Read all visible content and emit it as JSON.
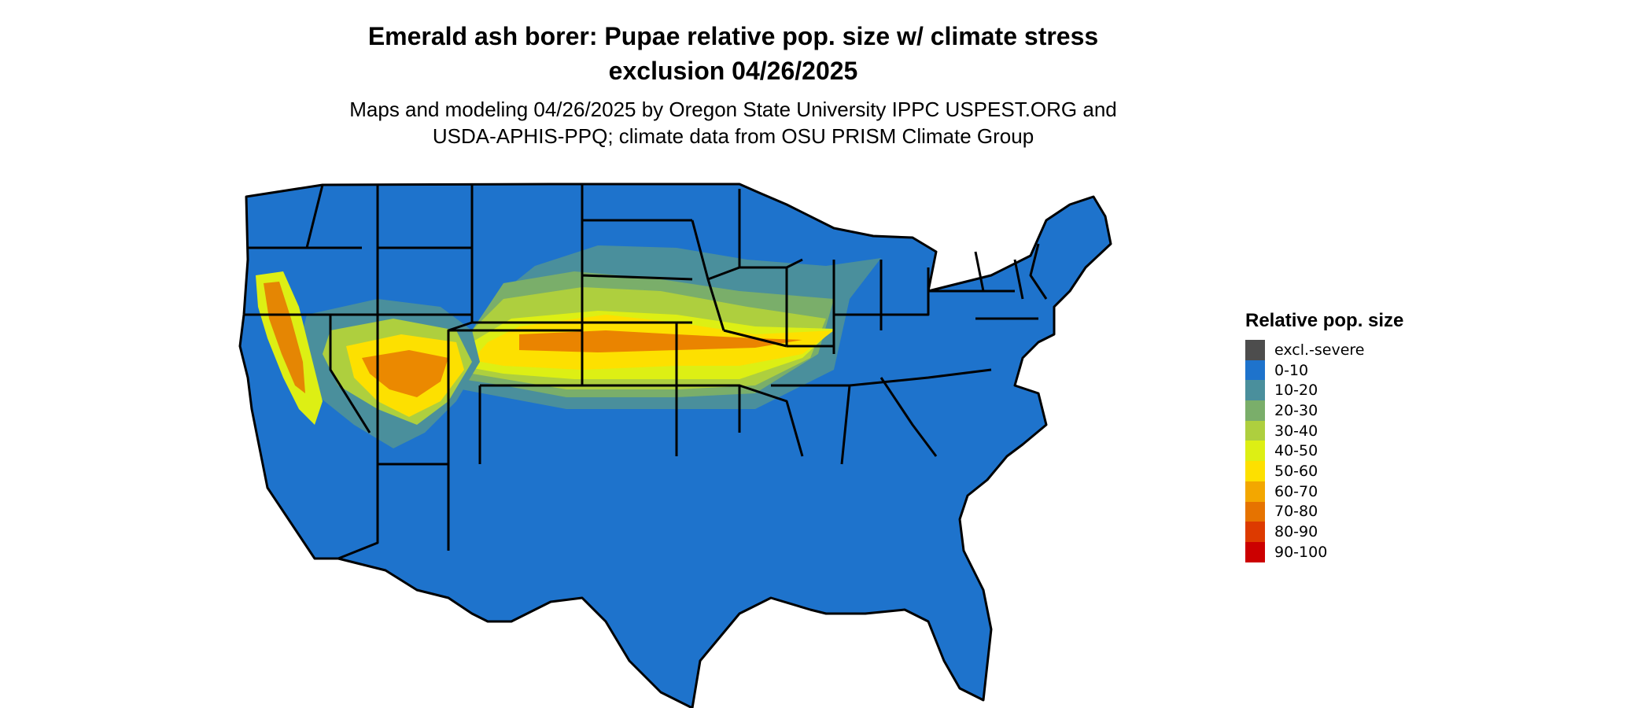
{
  "header": {
    "title_line1": "Emerald ash borer: Pupae relative pop. size w/ climate stress",
    "title_line2": "exclusion 04/26/2025",
    "subtitle_line1": "Maps and modeling 04/26/2025 by Oregon State University IPPC USPEST.ORG and",
    "subtitle_line2": "USDA-APHIS-PPQ; climate data from OSU PRISM Climate Group"
  },
  "legend": {
    "title": "Relative pop. size",
    "items": [
      {
        "label": "excl.-severe",
        "color": "#4d4d4d"
      },
      {
        "label": "0-10",
        "color": "#1e73cc"
      },
      {
        "label": "10-20",
        "color": "#4a8f9c"
      },
      {
        "label": "20-30",
        "color": "#7aae6a"
      },
      {
        "label": "30-40",
        "color": "#aecf3e"
      },
      {
        "label": "40-50",
        "color": "#ddef14"
      },
      {
        "label": "50-60",
        "color": "#fde000"
      },
      {
        "label": "60-70",
        "color": "#f3a700"
      },
      {
        "label": "70-80",
        "color": "#e67300"
      },
      {
        "label": "80-90",
        "color": "#dd3a00"
      },
      {
        "label": "90-100",
        "color": "#cc0000"
      }
    ]
  }
}
